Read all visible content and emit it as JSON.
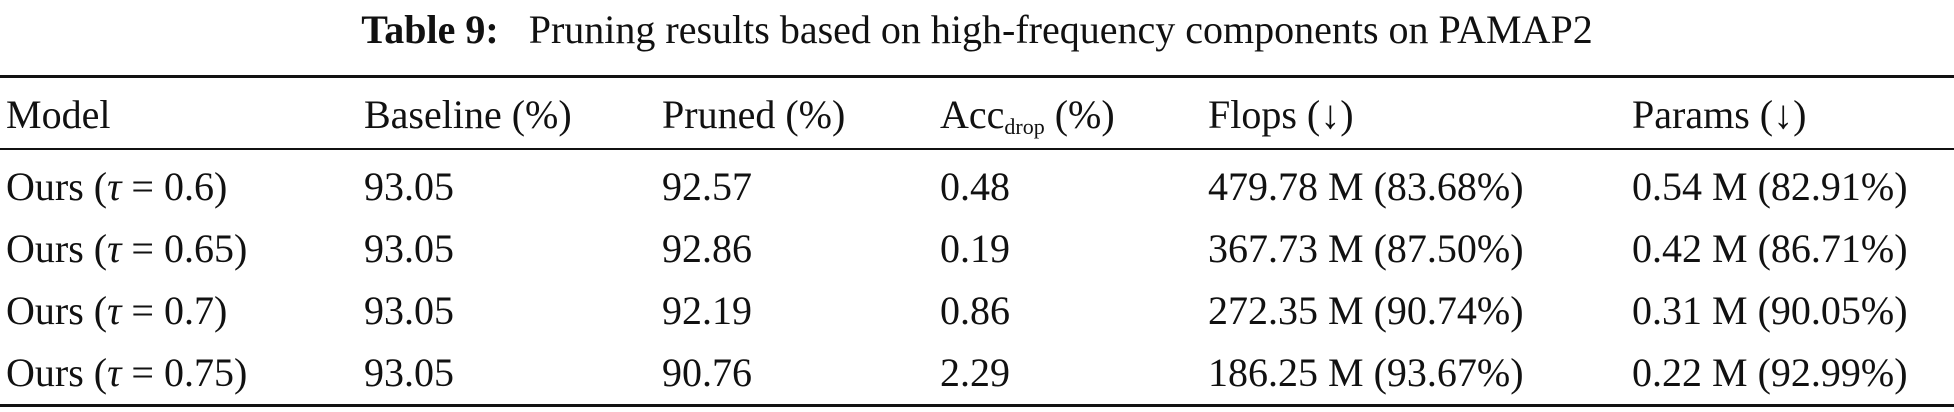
{
  "caption": {
    "label": "Table 9:",
    "text": "Pruning results based on high-frequency components on PAMAP2"
  },
  "table": {
    "headers": {
      "model": "Model",
      "baseline": "Baseline (%)",
      "pruned": "Pruned (%)",
      "acc_main": "Acc",
      "acc_sub": "drop",
      "acc_unit": " (%)",
      "flops": "Flops (↓)",
      "params": "Params (↓)"
    },
    "rows": [
      {
        "model_prefix": "Ours (",
        "model_tau": "τ",
        "model_suffix": " = 0.6)",
        "baseline": "93.05",
        "pruned": "92.57",
        "acc_drop": "0.48",
        "flops": "479.78 M (83.68%)",
        "params": "0.54 M (82.91%)"
      },
      {
        "model_prefix": "Ours (",
        "model_tau": "τ",
        "model_suffix": " = 0.65)",
        "baseline": "93.05",
        "pruned": "92.86",
        "acc_drop": "0.19",
        "flops": "367.73 M (87.50%)",
        "params": "0.42 M (86.71%)"
      },
      {
        "model_prefix": "Ours (",
        "model_tau": "τ",
        "model_suffix": " = 0.7)",
        "baseline": "93.05",
        "pruned": "92.19",
        "acc_drop": "0.86",
        "flops": "272.35 M (90.74%)",
        "params": "0.31 M (90.05%)"
      },
      {
        "model_prefix": "Ours (",
        "model_tau": "τ",
        "model_suffix": " = 0.75)",
        "baseline": "93.05",
        "pruned": "90.76",
        "acc_drop": "2.29",
        "flops": "186.25 M (93.67%)",
        "params": "0.22 M (92.99%)"
      }
    ]
  }
}
